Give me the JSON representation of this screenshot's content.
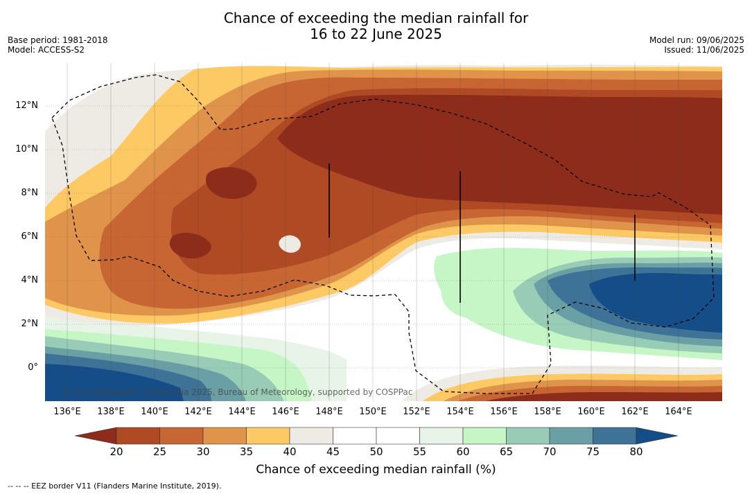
{
  "title": {
    "line1": "Chance of exceeding the median rainfall for",
    "line2": "16 to 22 June 2025"
  },
  "meta_left": {
    "base_period": "Base period: 1981-2018",
    "model": "Model: ACCESS-S2"
  },
  "meta_right": {
    "model_run": "Model run: 09/06/2025",
    "issued": "Issued: 11/06/2025"
  },
  "map": {
    "lat_labels": [
      "12°N",
      "10°N",
      "8°N",
      "6°N",
      "4°N",
      "2°N",
      "0°"
    ],
    "lon_labels": [
      "136°E",
      "138°E",
      "140°E",
      "142°E",
      "144°E",
      "146°E",
      "148°E",
      "150°E",
      "152°E",
      "154°E",
      "156°E",
      "158°E",
      "160°E",
      "162°E",
      "164°E"
    ],
    "lon_range": [
      134.6,
      165.6
    ],
    "lat_range": [
      -1.5,
      13.9
    ],
    "copyright": "© Commonwealth of Australia 2025, Bureau of Meteorology, supported by COSPPac"
  },
  "colorbar": {
    "ticks": [
      "20",
      "25",
      "30",
      "35",
      "40",
      "45",
      "50",
      "55",
      "60",
      "65",
      "70",
      "75",
      "80"
    ],
    "colors": [
      "#8e2c1c",
      "#b04a25",
      "#c86633",
      "#e0934a",
      "#fdc965",
      "#eeebe4",
      "#ffffff",
      "#ffffff",
      "#e8f4e8",
      "#c6f5c6",
      "#99ccb7",
      "#6a9fa6",
      "#3e7296",
      "#144d87"
    ],
    "label": "Chance of exceeding median rainfall (%)"
  },
  "footer": "--  --  -- EEZ border V11 (Flanders Marine Institute, 2019)."
}
